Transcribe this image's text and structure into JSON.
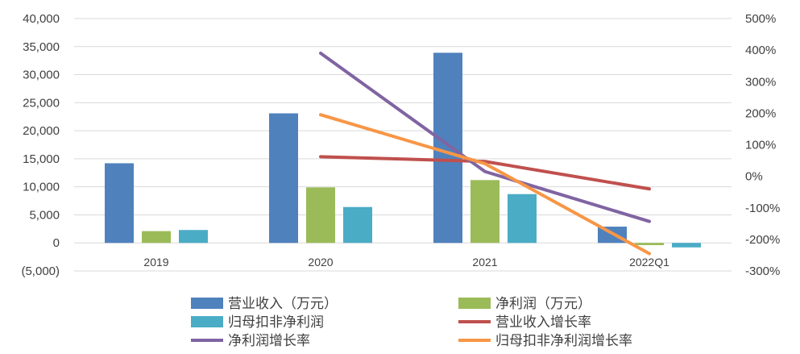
{
  "chart_data": {
    "type": "bar",
    "categories": [
      "2019",
      "2020",
      "2021",
      "2022Q1"
    ],
    "bar_series": [
      {
        "name": "营业收入（万元）",
        "values": [
          14200,
          23100,
          33900,
          2900
        ],
        "color": "#4F81BD"
      },
      {
        "name": "净利润（万元）",
        "values": [
          2100,
          9900,
          11200,
          -400
        ],
        "color": "#9BBB59"
      },
      {
        "name": "归母扣非净利润",
        "values": [
          2300,
          6400,
          8700,
          -800
        ],
        "color": "#4BACC6"
      }
    ],
    "line_series": [
      {
        "name": "营业收入增长率",
        "values": [
          null,
          62,
          47,
          -40
        ],
        "color": "#C0504D"
      },
      {
        "name": "净利润增长率",
        "values": [
          null,
          390,
          15,
          -143
        ],
        "color": "#8064A2"
      },
      {
        "name": "归母扣非净利润增长率",
        "values": [
          null,
          195,
          40,
          -245
        ],
        "color": "#F79646"
      }
    ],
    "y_left": {
      "ylim": [
        -5000,
        40000
      ],
      "ticks": [
        "(5,000)",
        "0",
        "5,000",
        "10,000",
        "15,000",
        "20,000",
        "25,000",
        "30,000",
        "35,000",
        "40,000"
      ],
      "tick_values": [
        -5000,
        0,
        5000,
        10000,
        15000,
        20000,
        25000,
        30000,
        35000,
        40000
      ],
      "negative_tick_color": "#FF0000"
    },
    "y_right": {
      "ylim": [
        -300,
        500
      ],
      "ticks": [
        "-300%",
        "-200%",
        "-100%",
        "0%",
        "100%",
        "200%",
        "300%",
        "400%",
        "500%"
      ],
      "tick_values": [
        -300,
        -200,
        -100,
        0,
        100,
        200,
        300,
        400,
        500
      ]
    },
    "grid": true,
    "legend_position": "bottom"
  }
}
